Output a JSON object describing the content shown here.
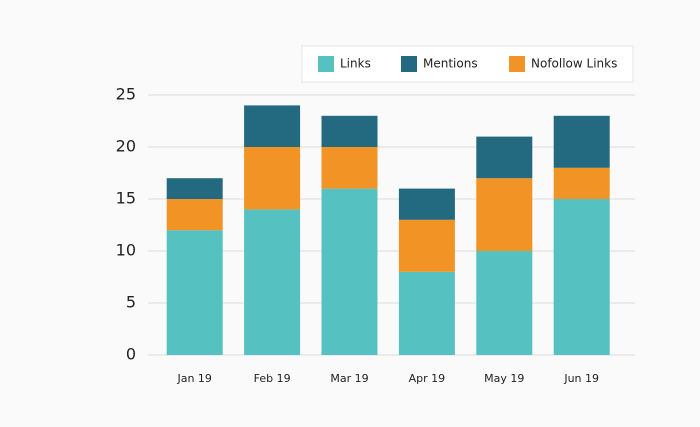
{
  "chart_data": {
    "type": "stacked-bar",
    "categories": [
      "Jan 19",
      "Feb 19",
      "Mar 19",
      "Apr 19",
      "May 19",
      "Jun 19"
    ],
    "series": [
      {
        "name": "Links",
        "color": "#55c1c1",
        "values": [
          12,
          14,
          16,
          8,
          10,
          15
        ]
      },
      {
        "name": "Mentions",
        "color": "#236a80",
        "values": [
          2,
          4,
          3,
          3,
          4,
          5
        ]
      },
      {
        "name": "Nofollow Links",
        "color": "#f29325",
        "values": [
          3,
          6,
          4,
          5,
          7,
          3
        ]
      }
    ],
    "ylim": [
      0,
      25
    ],
    "yticks": [
      0,
      5,
      10,
      15,
      20,
      25
    ],
    "grid": true,
    "legend": "top-right"
  }
}
